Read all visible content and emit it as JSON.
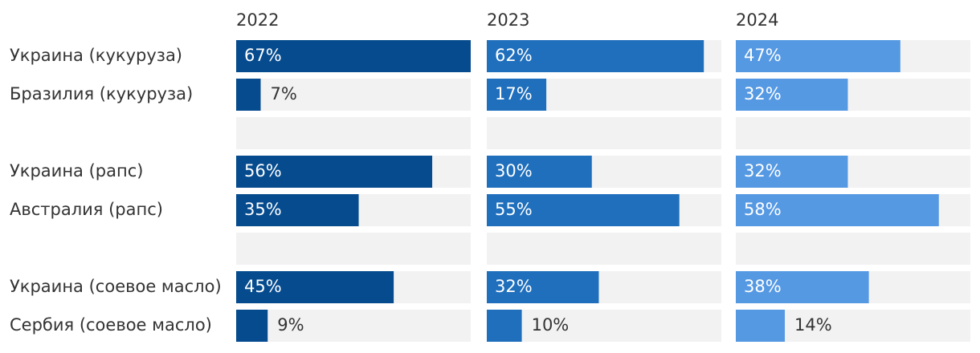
{
  "chart_data": {
    "type": "bar",
    "categories": [
      "Украина (кукуруза)",
      "Бразилия (кукуруза)",
      null,
      "Украина (рапс)",
      "Австралия (рапс)",
      null,
      "Украина (соевое масло)",
      "Сербия (соевое масло)"
    ],
    "xlim": [
      0,
      67
    ],
    "series": [
      {
        "name": "2022",
        "color": "#054b8e",
        "values": [
          67,
          7,
          null,
          56,
          35,
          null,
          45,
          9
        ],
        "value_labels": [
          "67%",
          "7%",
          null,
          "56%",
          "35%",
          null,
          "45%",
          "9%"
        ]
      },
      {
        "name": "2023",
        "color": "#1f6fbd",
        "values": [
          62,
          17,
          null,
          30,
          55,
          null,
          32,
          10
        ],
        "value_labels": [
          "62%",
          "17%",
          null,
          "30%",
          "55%",
          null,
          "32%",
          "10%"
        ]
      },
      {
        "name": "2024",
        "color": "#5699e3",
        "values": [
          47,
          32,
          null,
          32,
          58,
          null,
          38,
          14
        ],
        "value_labels": [
          "47%",
          "32%",
          null,
          "32%",
          "58%",
          null,
          "38%",
          "14%"
        ]
      }
    ]
  }
}
